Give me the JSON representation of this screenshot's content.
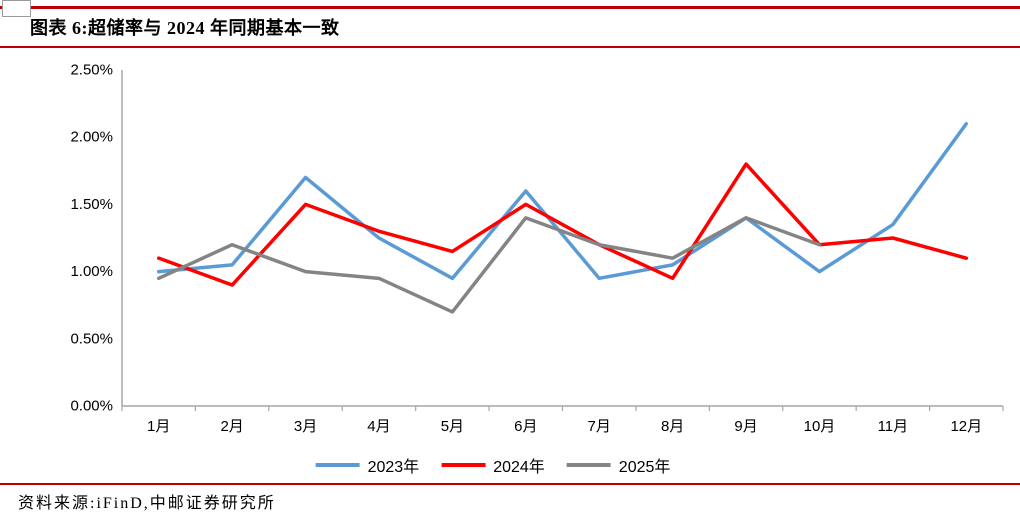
{
  "header": {
    "title": "图表 6:超储率与 2024 年同期基本一致"
  },
  "footer": {
    "source": "资料来源:iFinD,中邮证券研究所"
  },
  "colors": {
    "rule_red": "#C00000",
    "axis_gray": "#A6A6A6",
    "text_black": "#000000"
  },
  "chart_data": {
    "type": "line",
    "title": "",
    "xlabel": "",
    "ylabel": "",
    "categories": [
      "1月",
      "2月",
      "3月",
      "4月",
      "5月",
      "6月",
      "7月",
      "8月",
      "9月",
      "10月",
      "11月",
      "12月"
    ],
    "series": [
      {
        "name": "2023年",
        "color": "#5B9BD5",
        "values": [
          1.0,
          1.05,
          1.7,
          1.25,
          0.95,
          1.6,
          0.95,
          1.05,
          1.4,
          1.0,
          1.35,
          2.1
        ]
      },
      {
        "name": "2024年",
        "color": "#FF0000",
        "values": [
          1.1,
          0.9,
          1.5,
          1.3,
          1.15,
          1.5,
          1.2,
          0.95,
          1.8,
          1.2,
          1.25,
          1.1
        ]
      },
      {
        "name": "2025年",
        "color": "#848484",
        "values": [
          0.95,
          1.2,
          1.0,
          0.95,
          0.7,
          1.4,
          1.2,
          1.1,
          1.4,
          1.2
        ]
      }
    ],
    "ylim": [
      0,
      2.5
    ],
    "ytick_step": 0.5,
    "ytick_labels": [
      "0.00%",
      "0.50%",
      "1.00%",
      "1.50%",
      "2.00%",
      "2.50%"
    ],
    "grid": false,
    "legend_position": "bottom"
  }
}
